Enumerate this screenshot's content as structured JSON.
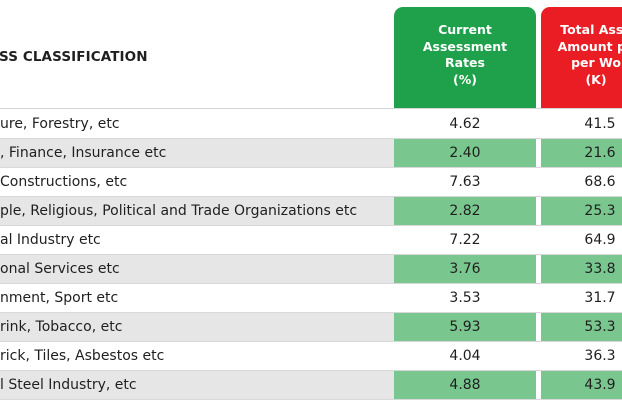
{
  "header": {
    "classification_title": "SS CLASSIFICATION",
    "rate_column": [
      "Current",
      "Assessment",
      "Rates",
      "(%)"
    ],
    "amount_column": [
      "Total Asse",
      "Amount pe",
      "per Wo",
      "(K)"
    ]
  },
  "rows": [
    {
      "label": "ure, Forestry, etc",
      "rate": "4.62",
      "amount": "41.5",
      "shaded": false
    },
    {
      "label": ", Finance, Insurance etc",
      "rate": "2.40",
      "amount": "21.6",
      "shaded": true
    },
    {
      "label": " Constructions, etc",
      "rate": "7.63",
      "amount": "68.6",
      "shaded": false
    },
    {
      "label": "ple, Religious, Political and Trade Organizations etc",
      "rate": "2.82",
      "amount": "25.3",
      "shaded": true
    },
    {
      "label": "al Industry etc",
      "rate": "7.22",
      "amount": "64.9",
      "shaded": false
    },
    {
      "label": "onal Services etc",
      "rate": "3.76",
      "amount": "33.8",
      "shaded": true
    },
    {
      "label": "nment, Sport etc",
      "rate": "3.53",
      "amount": "31.7",
      "shaded": false
    },
    {
      "label": "rink, Tobacco, etc",
      "rate": "5.93",
      "amount": "53.3",
      "shaded": true
    },
    {
      "label": "rick, Tiles, Asbestos etc",
      "rate": "4.04",
      "amount": "36.3",
      "shaded": false
    },
    {
      "label": "l Steel Industry, etc",
      "rate": "4.88",
      "amount": "43.9",
      "shaded": true
    }
  ],
  "colors": {
    "rate_header": "#1fa04a",
    "amount_header": "#ea1c24",
    "shaded_row": "#e6e6e6",
    "shaded_cell": "#79c78e"
  }
}
